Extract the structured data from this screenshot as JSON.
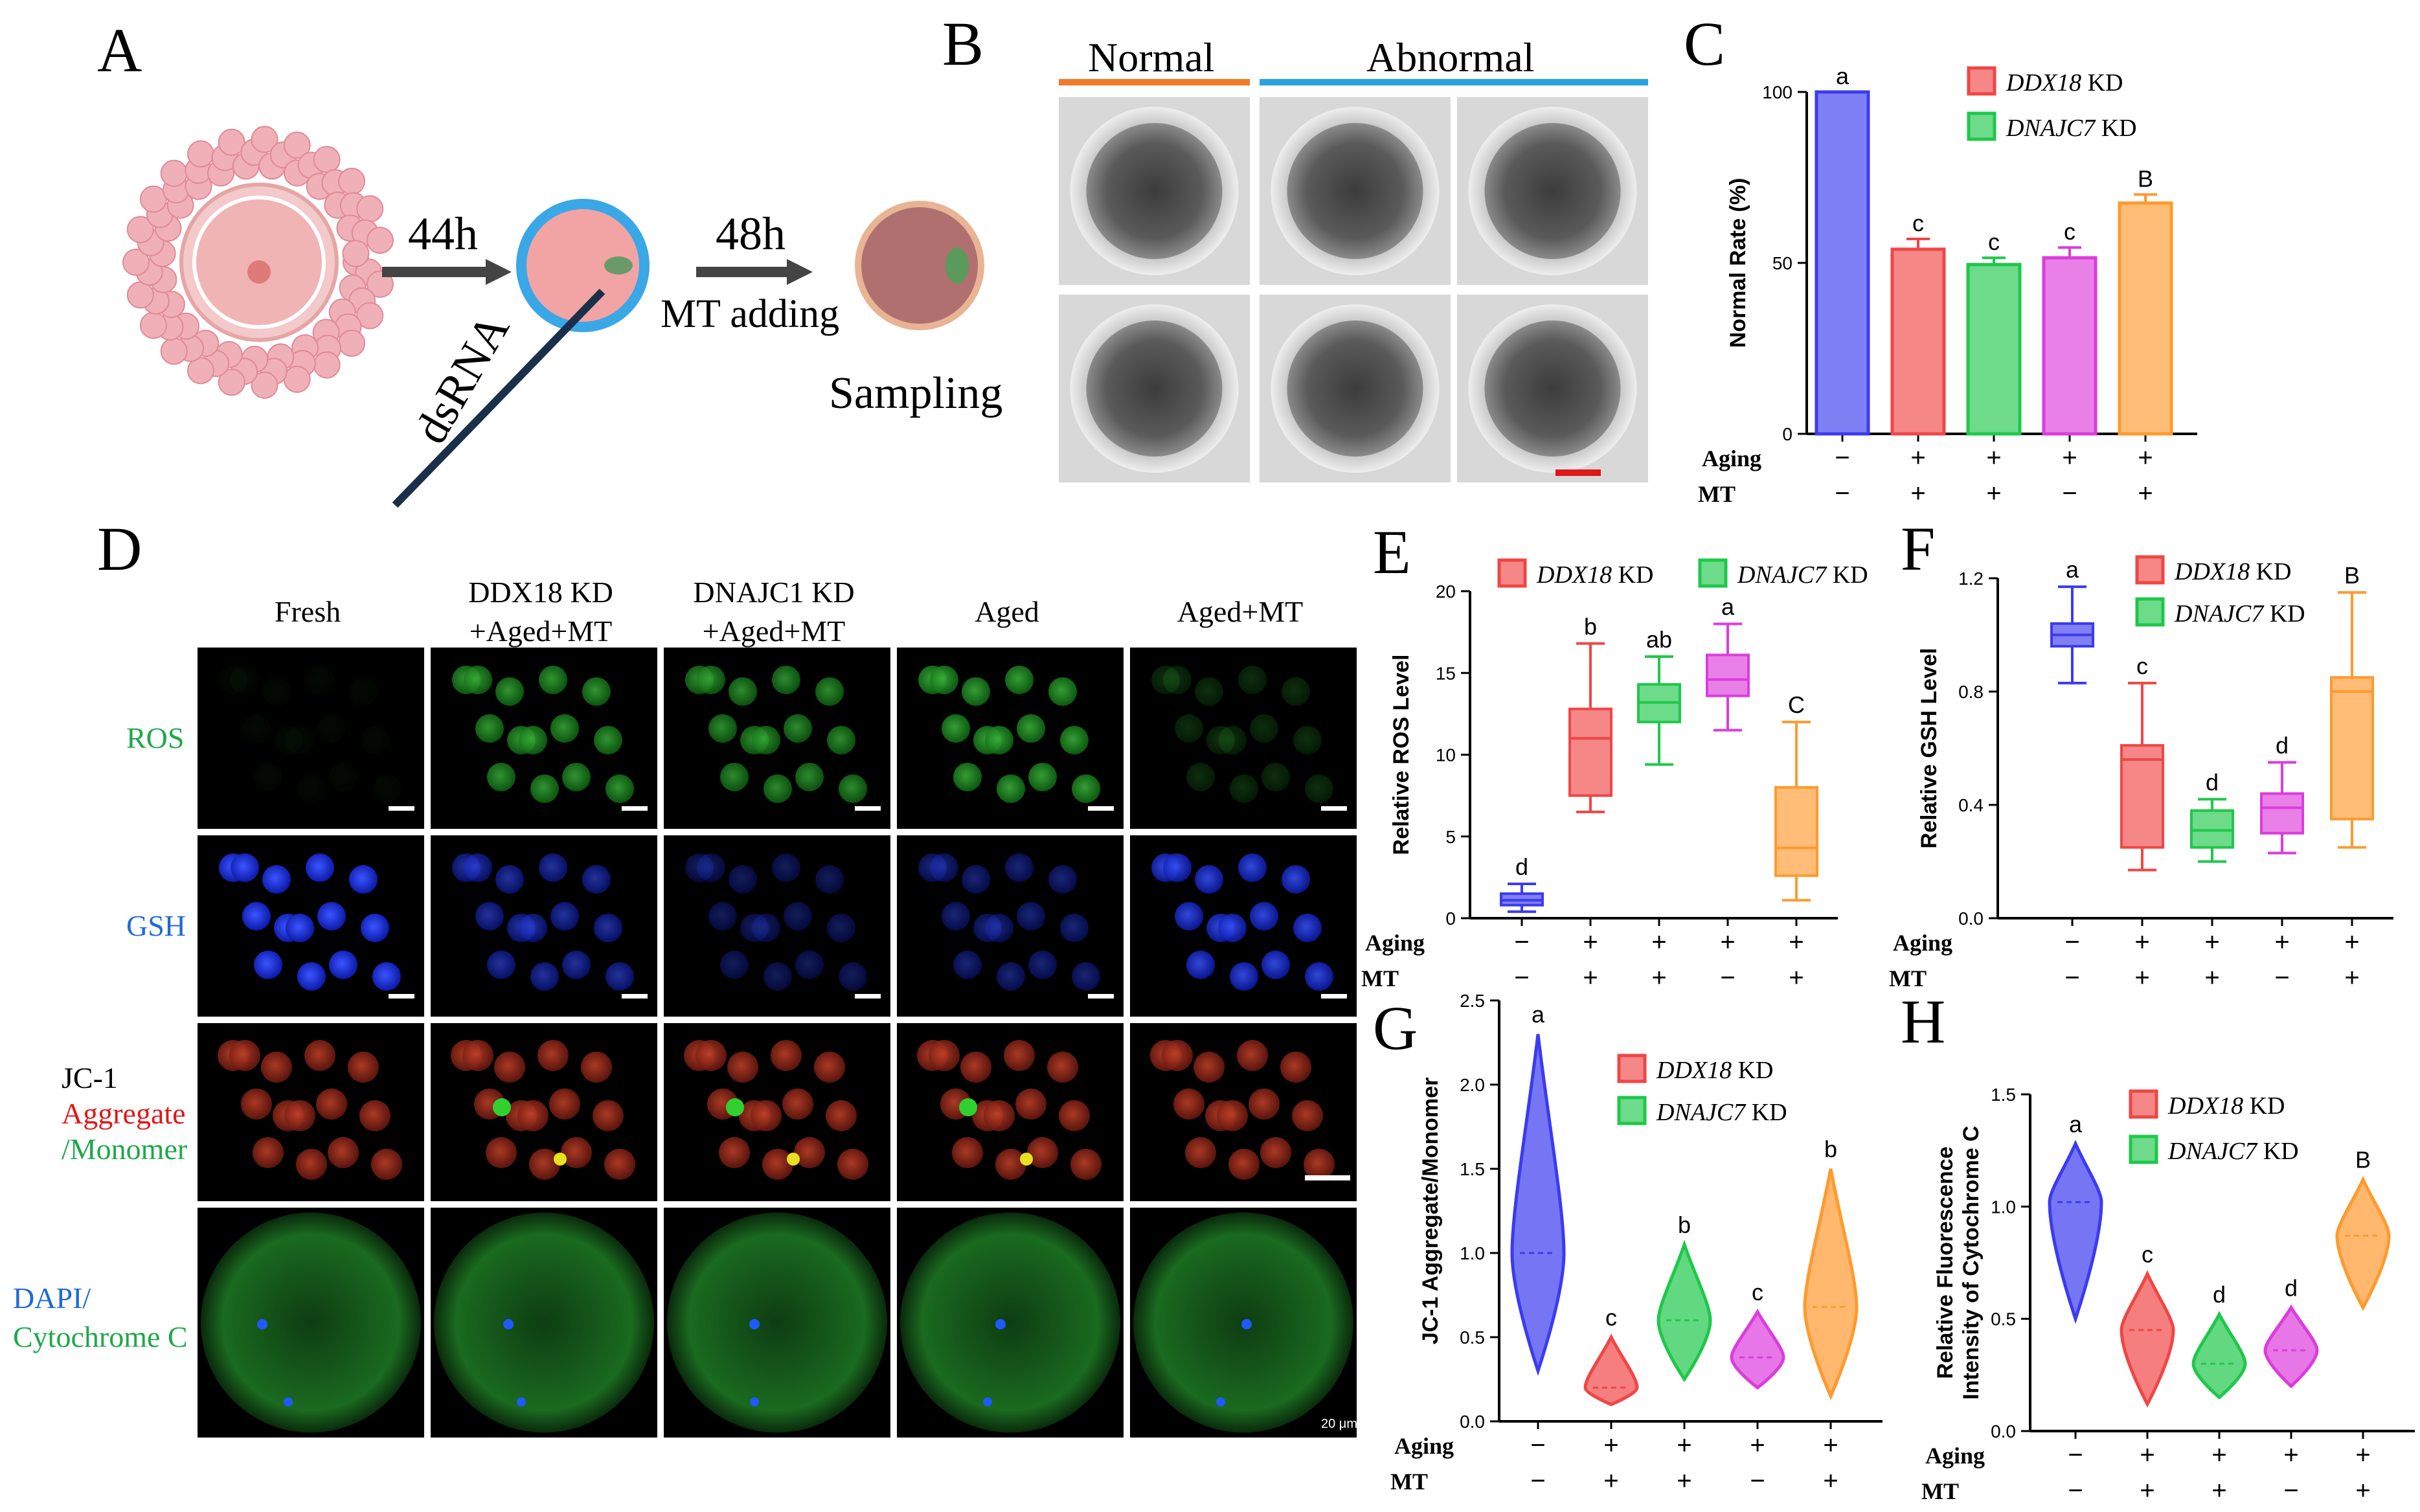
{
  "panels": {
    "A": "A",
    "B": "B",
    "C": "C",
    "D": "D",
    "E": "E",
    "F": "F",
    "G": "G",
    "H": "H"
  },
  "panelA": {
    "t1": "44h",
    "t2": "48h",
    "t3": "MT adding",
    "t4": "Sampling",
    "t5": "dsRNA"
  },
  "panelB": {
    "normal": "Normal",
    "abnormal": "Abnormal"
  },
  "legend": {
    "g1": "DDX18",
    "g2": "DNAJC7",
    "kd": "KD"
  },
  "xrows": {
    "aging": "Aging",
    "mt": "MT",
    "aging_vals": [
      "−",
      "+",
      "+",
      "+",
      "+"
    ],
    "mt_vals": [
      "−",
      "+",
      "+",
      "−",
      "+"
    ]
  },
  "panelD": {
    "cols": [
      [
        "Fresh",
        ""
      ],
      [
        "DDX18 KD",
        "+Aged+MT"
      ],
      [
        "DNAJC1 KD",
        "+Aged+MT"
      ],
      [
        "Aged",
        ""
      ],
      [
        "Aged+MT",
        ""
      ]
    ],
    "row_ros": "ROS",
    "row_gsh": "GSH",
    "row_jc1_a": "JC-1",
    "row_jc1_b": "Aggregate",
    "row_jc1_c": "/Monomer",
    "row_cyt_a": "DAPI/",
    "row_cyt_b": "Cytochrome C",
    "scale": "20 μm"
  },
  "colors": {
    "blue": "#3b3bf0",
    "red": "#f04646",
    "green": "#1ec84a",
    "magenta": "#dc3cdc",
    "orange": "#ff9a2e"
  },
  "chart_data": [
    {
      "type": "bar",
      "panel": "C",
      "ylabel": "Normal Rate (%)",
      "ylim": [
        0,
        100
      ],
      "yticks": [
        0,
        50,
        100
      ],
      "values": [
        100,
        54,
        49.5,
        51.5,
        67.5
      ],
      "errors": [
        0,
        3,
        2,
        3,
        2.5
      ],
      "labels": [
        "a",
        "c",
        "c",
        "c",
        "B"
      ]
    },
    {
      "type": "box",
      "panel": "E",
      "ylabel": "Relative ROS Level",
      "ylim": [
        0,
        20
      ],
      "yticks": [
        0,
        5,
        10,
        15,
        20
      ],
      "series": [
        {
          "min": 0.4,
          "q1": 0.8,
          "median": 1.1,
          "q3": 1.5,
          "max": 2.1
        },
        {
          "min": 6.5,
          "q1": 7.5,
          "median": 11,
          "q3": 12.8,
          "max": 16.8
        },
        {
          "min": 9.4,
          "q1": 12,
          "median": 13.2,
          "q3": 14.3,
          "max": 16
        },
        {
          "min": 11.5,
          "q1": 13.6,
          "median": 14.6,
          "q3": 16.1,
          "max": 18
        },
        {
          "min": 1.1,
          "q1": 2.6,
          "median": 4.3,
          "q3": 8,
          "max": 12
        }
      ],
      "labels": [
        "d",
        "b",
        "ab",
        "a",
        "C"
      ]
    },
    {
      "type": "box",
      "panel": "F",
      "ylabel": "Relative GSH Level",
      "ylim": [
        0,
        1.2
      ],
      "yticks": [
        0.0,
        0.4,
        0.8,
        1.2
      ],
      "series": [
        {
          "min": 0.83,
          "q1": 0.96,
          "median": 1.0,
          "q3": 1.04,
          "max": 1.17
        },
        {
          "min": 0.17,
          "q1": 0.25,
          "median": 0.56,
          "q3": 0.61,
          "max": 0.83
        },
        {
          "min": 0.2,
          "q1": 0.25,
          "median": 0.31,
          "q3": 0.38,
          "max": 0.42
        },
        {
          "min": 0.23,
          "q1": 0.3,
          "median": 0.39,
          "q3": 0.44,
          "max": 0.55
        },
        {
          "min": 0.25,
          "q1": 0.35,
          "median": 0.8,
          "q3": 0.85,
          "max": 1.15
        }
      ],
      "labels": [
        "a",
        "c",
        "d",
        "d",
        "B"
      ]
    },
    {
      "type": "violin",
      "panel": "G",
      "ylabel": "JC-1 Aggregate/Monomer",
      "ylim": [
        0,
        2.5
      ],
      "yticks": [
        0.0,
        0.5,
        1.0,
        1.5,
        2.0,
        2.5
      ],
      "series": [
        {
          "min": 0.3,
          "max": 2.3,
          "median": 1.0
        },
        {
          "min": 0.1,
          "max": 0.5,
          "median": 0.2
        },
        {
          "min": 0.25,
          "max": 1.05,
          "median": 0.6
        },
        {
          "min": 0.2,
          "max": 0.65,
          "median": 0.38
        },
        {
          "min": 0.15,
          "max": 1.5,
          "median": 0.68
        }
      ],
      "labels": [
        "a",
        "c",
        "b",
        "c",
        "b"
      ]
    },
    {
      "type": "violin",
      "panel": "H",
      "ylabel": "Relative Fluorescence",
      "ylabel2": "Intensity of Cytochrome C",
      "ylim": [
        0,
        1.5
      ],
      "yticks": [
        0.0,
        0.5,
        1.0,
        1.5
      ],
      "series": [
        {
          "min": 0.5,
          "max": 1.28,
          "median": 1.02
        },
        {
          "min": 0.12,
          "max": 0.7,
          "median": 0.45
        },
        {
          "min": 0.15,
          "max": 0.52,
          "median": 0.3
        },
        {
          "min": 0.2,
          "max": 0.55,
          "median": 0.36
        },
        {
          "min": 0.55,
          "max": 1.12,
          "median": 0.87
        }
      ],
      "labels": [
        "a",
        "c",
        "d",
        "d",
        "B"
      ]
    }
  ]
}
